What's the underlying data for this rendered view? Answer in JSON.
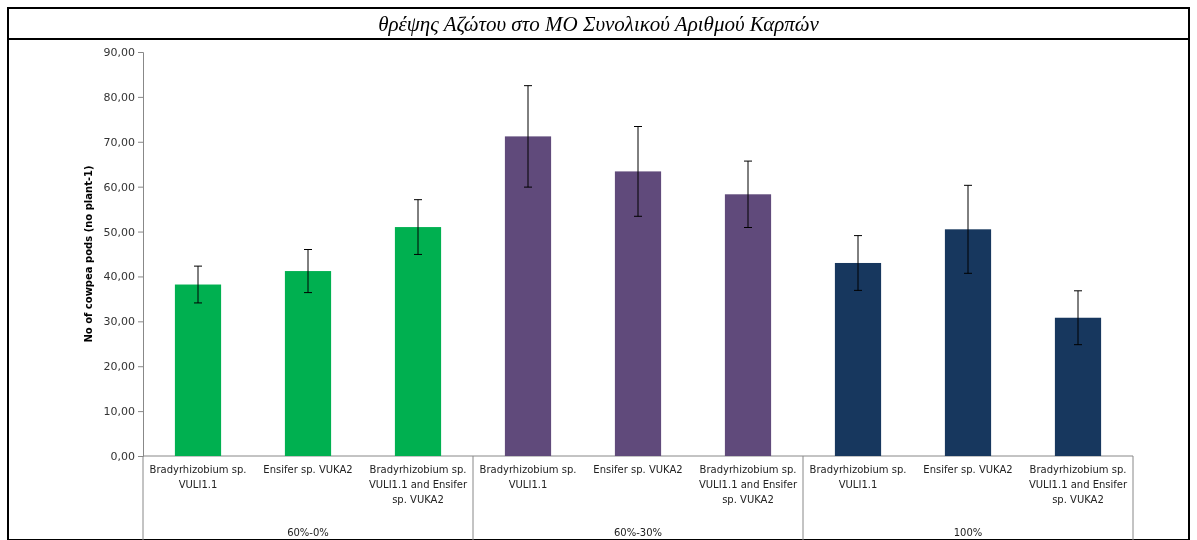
{
  "chart_data": {
    "type": "bar",
    "title": "θρέψης Αζώτου στο ΜΟ Συνολικού Αριθμού Καρπών",
    "ylabel": "No of cowpea pods (no plant-1)",
    "categories": [
      "Bradyrhizobium sp. VULI1.1",
      "Ensifer sp. VUKA2",
      "Bradyrhizobium sp. VULI1.1 and Ensifer sp. VUKA2",
      "Bradyrhizobium sp. VULI1.1",
      "Ensifer sp. VUKA2",
      "Bradyrhizobium sp. VULI1.1 and Ensifer sp. VUKA2",
      "Bradyrhizobium sp. VULI1.1",
      "Ensifer sp. VUKA2",
      "Bradyrhizobium sp. VULI1.1 and Ensifer sp. VUKA2"
    ],
    "values": [
      38.2,
      41.2,
      51.0,
      71.2,
      63.4,
      58.3,
      43.0,
      50.5,
      30.8
    ],
    "errors": [
      4.1,
      4.8,
      6.1,
      11.3,
      10.0,
      7.4,
      6.1,
      9.8,
      6.0
    ],
    "colors": [
      "#00b050",
      "#00b050",
      "#00b050",
      "#604a7b",
      "#604a7b",
      "#604a7b",
      "#17375e",
      "#17375e",
      "#17375e"
    ],
    "annotations": [
      "60%-0%",
      "60%-30%",
      "100%"
    ],
    "ylim": [
      0,
      90
    ],
    "yticks": [
      {
        "value": 0,
        "label": "0,00"
      },
      {
        "value": 10,
        "label": "10,00"
      },
      {
        "value": 20,
        "label": "20,00"
      },
      {
        "value": 30,
        "label": "30,00"
      },
      {
        "value": 40,
        "label": "40,00"
      },
      {
        "value": 50,
        "label": "50,00"
      },
      {
        "value": 60,
        "label": "60,00"
      },
      {
        "value": 70,
        "label": "70,00"
      },
      {
        "value": 80,
        "label": "80,00"
      },
      {
        "value": 90,
        "label": "90,00"
      }
    ],
    "grid": false
  }
}
